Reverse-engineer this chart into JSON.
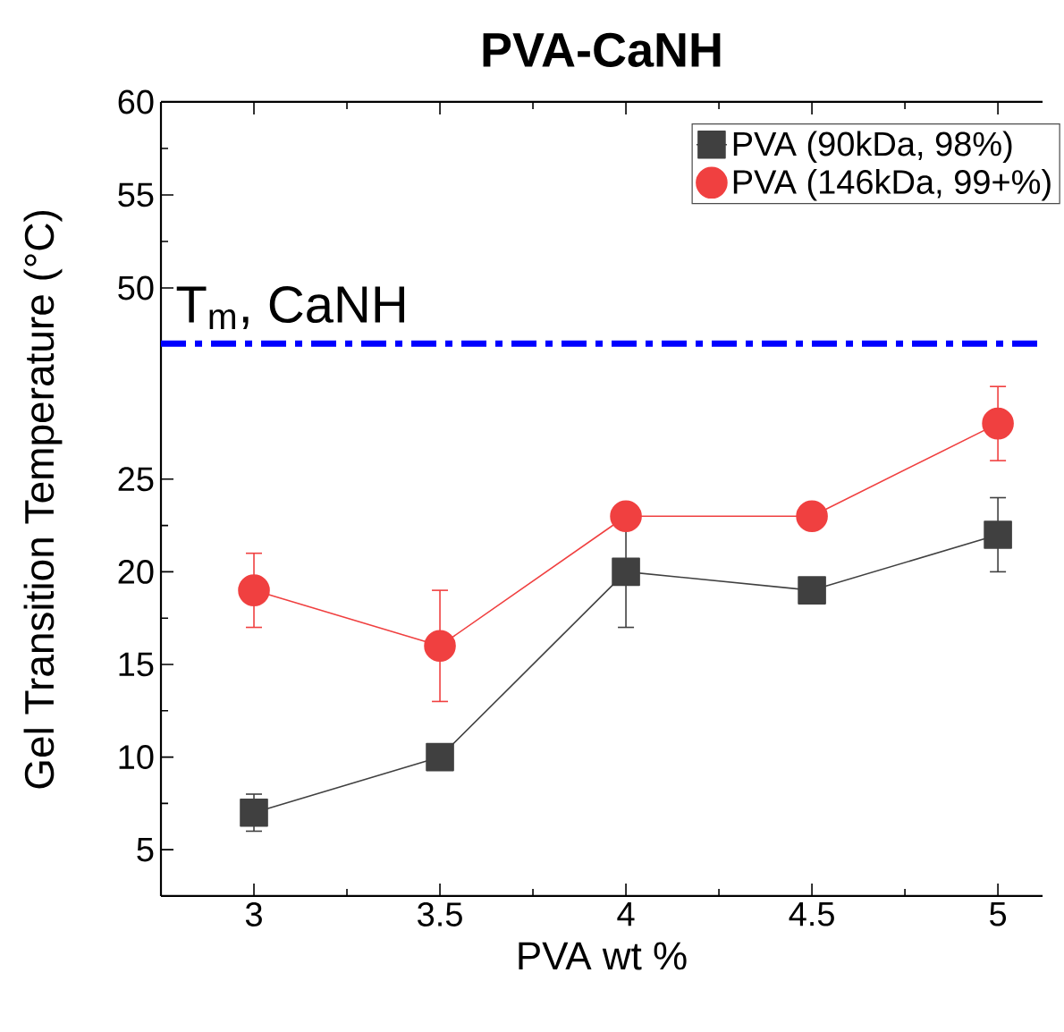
{
  "chart_data": [
    {
      "type": "line",
      "title": "PVA-CaNH",
      "xlim": [
        2.75,
        5.12
      ],
      "xticks": [
        3,
        3.5,
        4,
        4.5,
        5
      ],
      "ylim": [
        45,
        60
      ],
      "yticks": [
        50,
        55,
        60
      ],
      "tick_labels": "y",
      "ref_lines": [
        {
          "axis": "y",
          "value": 47,
          "label": "T$_{m}$, CaNH",
          "color": "#0000ff",
          "line_style": "dashed"
        }
      ]
    },
    {
      "type": "line",
      "xlabel": "PVA wt %",
      "ylabel": "Gel Transition Temperature (°C)",
      "xlim": [
        2.75,
        5.12
      ],
      "xticks": [
        3,
        3.5,
        4,
        4.5,
        5
      ],
      "ylim": [
        2.5,
        30.3
      ],
      "yticks": [
        5,
        10,
        15,
        20,
        25
      ],
      "legend": "top right",
      "x": [
        3,
        3.5,
        4,
        4.5,
        5
      ],
      "series": [
        {
          "name": "PVA (90kDa, 98%)",
          "color": "#404040",
          "marker": "square",
          "values": [
            7,
            10,
            20,
            19,
            22
          ],
          "errors": [
            1,
            null,
            3,
            null,
            2
          ]
        },
        {
          "name": "PVA (146kDa, 99+%)",
          "color": "#f04040",
          "marker": "circle",
          "values": [
            19,
            16,
            23,
            23,
            28
          ],
          "errors": [
            2,
            3,
            null,
            null,
            2
          ]
        }
      ]
    }
  ]
}
